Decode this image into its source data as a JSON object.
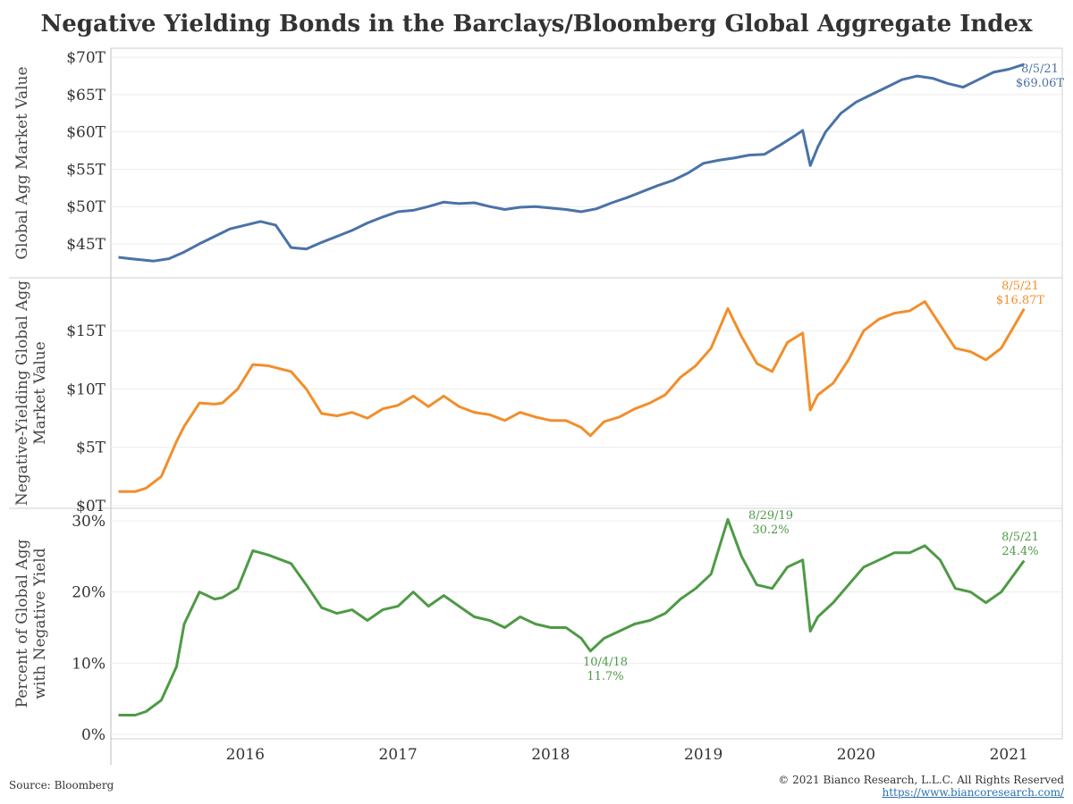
{
  "title": "Negative Yielding Bonds in the Barclays/Bloomberg Global Aggregate Index",
  "footer": {
    "source": "Source: Bloomberg",
    "copyright": "© 2021 Bianco Research, L.L.C. All Rights Reserved",
    "url": "https://www.biancoresearch.com/"
  },
  "colors": {
    "blue": "#4a72a6",
    "orange": "#f28e2b",
    "green": "#4e9a45"
  },
  "x_ticks": [
    "2016",
    "2017",
    "2018",
    "2019",
    "2020",
    "2021"
  ],
  "chart_data": [
    {
      "type": "line",
      "ylabel": "Global Agg Market Value",
      "y_ticks": [
        "$45T",
        "$50T",
        "$55T",
        "$60T",
        "$65T",
        "$70T"
      ],
      "y_tick_values": [
        45,
        50,
        55,
        60,
        65,
        70
      ],
      "ylim": [
        42,
        70.5
      ],
      "annotation": {
        "date": "8/5/21",
        "value": "$69.06T"
      },
      "series": [
        {
          "x": [
            2015.67,
            2015.75,
            2015.9,
            2016.0,
            2016.1,
            2016.2,
            2016.3,
            2016.4,
            2016.5,
            2016.6,
            2016.7,
            2016.8,
            2016.9,
            2017.0,
            2017.1,
            2017.2,
            2017.3,
            2017.4,
            2017.5,
            2017.6,
            2017.7,
            2017.8,
            2017.9,
            2018.0,
            2018.1,
            2018.2,
            2018.3,
            2018.4,
            2018.5,
            2018.6,
            2018.7,
            2018.8,
            2018.9,
            2019.0,
            2019.1,
            2019.2,
            2019.3,
            2019.4,
            2019.5,
            2019.6,
            2019.7,
            2019.8,
            2019.9,
            2020.0,
            2020.1,
            2020.15,
            2020.2,
            2020.25,
            2020.3,
            2020.4,
            2020.5,
            2020.6,
            2020.7,
            2020.8,
            2020.9,
            2021.0,
            2021.1,
            2021.2,
            2021.3,
            2021.4,
            2021.5,
            2021.6
          ],
          "values": [
            43.2,
            43.0,
            42.7,
            43.0,
            43.9,
            45.0,
            46.0,
            47.0,
            47.5,
            48.0,
            47.5,
            44.5,
            44.3,
            45.2,
            46.0,
            46.8,
            47.8,
            48.6,
            49.3,
            49.5,
            50.0,
            50.6,
            50.4,
            50.5,
            50.0,
            49.6,
            49.9,
            50.0,
            49.8,
            49.6,
            49.3,
            49.7,
            50.5,
            51.2,
            52.0,
            52.8,
            53.5,
            54.5,
            55.8,
            56.2,
            56.5,
            56.9,
            57.0,
            58.2,
            59.5,
            60.2,
            55.5,
            58.0,
            60.0,
            62.5,
            64.0,
            65.0,
            66.0,
            67.0,
            67.5,
            67.2,
            66.5,
            66.0,
            67.0,
            68.0,
            68.4,
            69.06
          ]
        }
      ]
    },
    {
      "type": "line",
      "ylabel": "Negative-Yielding Global Agg Market Value",
      "y_ticks": [
        "$0T",
        "$5T",
        "$10T",
        "$15T"
      ],
      "y_tick_values": [
        0,
        5,
        10,
        15
      ],
      "ylim": [
        0,
        19
      ],
      "annotation": {
        "date": "8/5/21",
        "value": "$16.87T"
      },
      "series": [
        {
          "x": [
            2015.67,
            2015.78,
            2015.85,
            2015.95,
            2016.05,
            2016.1,
            2016.2,
            2016.3,
            2016.35,
            2016.45,
            2016.55,
            2016.65,
            2016.8,
            2016.9,
            2017.0,
            2017.1,
            2017.2,
            2017.3,
            2017.4,
            2017.5,
            2017.6,
            2017.7,
            2017.8,
            2017.9,
            2018.0,
            2018.1,
            2018.2,
            2018.3,
            2018.4,
            2018.5,
            2018.6,
            2018.7,
            2018.76,
            2018.85,
            2018.95,
            2019.05,
            2019.15,
            2019.25,
            2019.35,
            2019.45,
            2019.55,
            2019.66,
            2019.75,
            2019.85,
            2019.95,
            2020.05,
            2020.15,
            2020.2,
            2020.25,
            2020.35,
            2020.45,
            2020.55,
            2020.65,
            2020.75,
            2020.85,
            2020.95,
            2021.05,
            2021.15,
            2021.25,
            2021.35,
            2021.45,
            2021.6
          ],
          "values": [
            1.2,
            1.2,
            1.5,
            2.5,
            5.5,
            6.8,
            8.8,
            8.7,
            8.8,
            10.0,
            12.1,
            12.0,
            11.5,
            10.0,
            7.9,
            7.7,
            8.0,
            7.5,
            8.3,
            8.6,
            9.4,
            8.5,
            9.4,
            8.5,
            8.0,
            7.8,
            7.3,
            8.0,
            7.6,
            7.3,
            7.3,
            6.7,
            6.0,
            7.2,
            7.6,
            8.3,
            8.8,
            9.5,
            11.0,
            12.0,
            13.5,
            16.9,
            14.5,
            12.2,
            11.5,
            14.0,
            14.8,
            8.2,
            9.5,
            10.5,
            12.5,
            15.0,
            16.0,
            16.5,
            16.7,
            17.5,
            15.5,
            13.5,
            13.2,
            12.5,
            13.5,
            16.87
          ]
        }
      ]
    },
    {
      "type": "line",
      "ylabel": "Percent of Global Agg with Negative Yield",
      "y_ticks": [
        "0%",
        "10%",
        "20%",
        "30%"
      ],
      "y_tick_values": [
        0,
        10,
        20,
        30
      ],
      "ylim": [
        -1,
        31
      ],
      "annotations": [
        {
          "date": "8/29/19",
          "value": "30.2%"
        },
        {
          "date": "10/4/18",
          "value": "11.7%"
        },
        {
          "date": "8/5/21",
          "value": "24.4%"
        }
      ],
      "series": [
        {
          "x": [
            2015.67,
            2015.78,
            2015.85,
            2015.95,
            2016.05,
            2016.1,
            2016.2,
            2016.3,
            2016.35,
            2016.45,
            2016.55,
            2016.65,
            2016.8,
            2016.9,
            2017.0,
            2017.1,
            2017.2,
            2017.3,
            2017.4,
            2017.5,
            2017.6,
            2017.7,
            2017.8,
            2017.9,
            2018.0,
            2018.1,
            2018.2,
            2018.3,
            2018.4,
            2018.5,
            2018.6,
            2018.7,
            2018.76,
            2018.85,
            2018.95,
            2019.05,
            2019.15,
            2019.25,
            2019.35,
            2019.45,
            2019.55,
            2019.66,
            2019.75,
            2019.85,
            2019.95,
            2020.05,
            2020.15,
            2020.2,
            2020.25,
            2020.35,
            2020.45,
            2020.55,
            2020.65,
            2020.75,
            2020.85,
            2020.95,
            2021.05,
            2021.15,
            2021.25,
            2021.35,
            2021.45,
            2021.6
          ],
          "values": [
            2.7,
            2.7,
            3.2,
            4.8,
            9.5,
            15.5,
            20.0,
            19.0,
            19.2,
            20.5,
            25.8,
            25.2,
            24.0,
            21.0,
            17.8,
            17.0,
            17.5,
            16.0,
            17.5,
            18.0,
            20.0,
            18.0,
            19.5,
            18.0,
            16.5,
            16.0,
            15.0,
            16.5,
            15.5,
            15.0,
            15.0,
            13.5,
            11.7,
            13.5,
            14.5,
            15.5,
            16.0,
            17.0,
            19.0,
            20.5,
            22.5,
            30.2,
            25.0,
            21.0,
            20.5,
            23.5,
            24.5,
            14.5,
            16.5,
            18.5,
            21.0,
            23.5,
            24.5,
            25.5,
            25.5,
            26.5,
            24.5,
            20.5,
            20.0,
            18.5,
            20.0,
            24.4
          ]
        }
      ]
    }
  ]
}
